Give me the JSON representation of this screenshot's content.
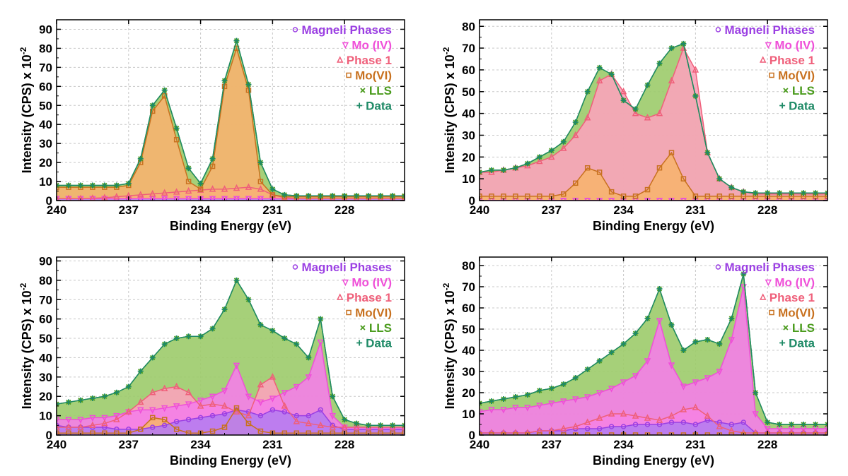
{
  "colors": {
    "magneli": "#9b3fe3",
    "moiv": "#ef4fd8",
    "phase1": "#ef5f7a",
    "movi": "#c8711f",
    "lls": "#4a9b1c",
    "data": "#1e8a66",
    "fill_magneli": "#b77cf0",
    "fill_moiv": "#f57ee8",
    "fill_phase1": "#fba3ba",
    "fill_movi": "#f7b26f",
    "fill_lls": "#9ccb6a",
    "grid": "#c8c8c8"
  },
  "chart_data": [
    {
      "type": "area",
      "title": "",
      "xlabel": "Binding Energy (eV)",
      "ylabel": "Intensity (CPS) x 10",
      "ylabel_exponent": "-2",
      "xlim": [
        240,
        225.5
      ],
      "ylim": [
        0,
        95
      ],
      "xticks": [
        "240",
        "237",
        "234",
        "231",
        "228"
      ],
      "yticks": [
        "0",
        "10",
        "20",
        "30",
        "40",
        "50",
        "60",
        "70",
        "80",
        "90"
      ],
      "legend": [
        "Magneli Phases",
        "Mo (IV)",
        "Phase 1",
        "Mo(VI)",
        "LLS",
        "Data"
      ],
      "x": [
        240,
        239.5,
        239,
        238.5,
        238,
        237.5,
        237,
        236.5,
        236,
        235.5,
        235,
        234.5,
        234,
        233.5,
        233,
        232.5,
        232,
        231.5,
        231,
        230.5,
        230,
        229.5,
        229,
        228.5,
        228,
        227.5,
        227,
        226.5,
        226,
        225.5
      ],
      "series": [
        {
          "name": "Magneli Phases",
          "values": [
            1,
            1,
            1,
            1,
            1,
            1,
            1,
            1,
            1,
            1,
            1,
            1,
            1,
            1,
            1,
            1,
            1,
            1,
            1,
            1,
            1,
            1,
            1,
            1,
            1,
            1,
            1,
            1,
            1,
            1
          ]
        },
        {
          "name": "Mo (IV)",
          "values": [
            1,
            1,
            1,
            1,
            1,
            1,
            1,
            1,
            1,
            1,
            1,
            1,
            1,
            1,
            1,
            1,
            1,
            1,
            1,
            1,
            1,
            1,
            1,
            1,
            1,
            1,
            1,
            1,
            1,
            1
          ]
        },
        {
          "name": "Phase 1",
          "values": [
            1,
            1,
            1,
            1.2,
            1.5,
            2,
            2.5,
            3,
            3.5,
            4,
            4.5,
            5,
            5.5,
            6,
            6,
            6.5,
            7,
            6,
            3,
            1.5,
            1,
            1,
            1,
            1,
            1,
            1,
            1,
            1,
            1,
            1
          ]
        },
        {
          "name": "Mo(VI)",
          "values": [
            7,
            7,
            7,
            7,
            7,
            7,
            8,
            20,
            47,
            55,
            32,
            10,
            6,
            18,
            60,
            80,
            58,
            10,
            3,
            2,
            2,
            2,
            2,
            2,
            2,
            2,
            2,
            2,
            2,
            2
          ]
        },
        {
          "name": "LLS",
          "values": [
            8,
            8,
            8,
            8,
            8,
            8,
            9,
            22,
            50,
            58,
            38,
            17,
            9,
            22,
            63,
            84,
            61,
            20,
            6,
            3,
            2.5,
            2.5,
            2.5,
            2.5,
            2.5,
            2.5,
            2.5,
            2.5,
            2.5,
            2.5
          ]
        },
        {
          "name": "Data",
          "values": [
            8,
            8,
            8,
            8,
            8,
            8,
            9,
            22,
            50,
            58,
            38,
            17,
            9,
            22,
            63,
            84,
            61,
            20,
            6,
            3,
            2.5,
            2.5,
            2.5,
            2.5,
            2.5,
            2.5,
            2.5,
            2.5,
            2.5,
            2.5
          ]
        }
      ]
    },
    {
      "type": "area",
      "title": "",
      "xlabel": "Binding Energy (eV)",
      "ylabel": "Intensity (CPS) x 10",
      "ylabel_exponent": "-2",
      "xlim": [
        240,
        225.5
      ],
      "ylim": [
        0,
        83
      ],
      "xticks": [
        "240",
        "237",
        "234",
        "231",
        "228"
      ],
      "yticks": [
        "0",
        "10",
        "20",
        "30",
        "40",
        "50",
        "60",
        "70",
        "80"
      ],
      "legend": [
        "Magneli Phases",
        "Mo (IV)",
        "Phase 1",
        "Mo(VI)",
        "LLS",
        "Data"
      ],
      "x": [
        240,
        239.5,
        239,
        238.5,
        238,
        237.5,
        237,
        236.5,
        236,
        235.5,
        235,
        234.5,
        234,
        233.5,
        233,
        232.5,
        232,
        231.5,
        231,
        230.5,
        230,
        229.5,
        229,
        228.5,
        228,
        227.5,
        227,
        226.5,
        226,
        225.5
      ],
      "series": [
        {
          "name": "Magneli Phases",
          "values": [
            0,
            0,
            0,
            0,
            0,
            0,
            0,
            0,
            0,
            0,
            0,
            0,
            0,
            0,
            0,
            0,
            0,
            0,
            0,
            0,
            0,
            0,
            0,
            0,
            0,
            0,
            0,
            0,
            0,
            0
          ]
        },
        {
          "name": "Mo (IV)",
          "values": [
            0,
            0,
            0,
            0,
            0,
            0,
            0,
            0,
            0,
            0,
            0,
            0,
            0,
            0,
            0,
            0,
            0,
            0,
            0,
            0,
            0,
            0,
            0,
            0,
            0,
            0,
            0,
            0,
            0,
            0
          ]
        },
        {
          "name": "Phase 1",
          "values": [
            13,
            13,
            14,
            15,
            16,
            18,
            20,
            24,
            30,
            38,
            55,
            58,
            50,
            40,
            38,
            40,
            55,
            70,
            60,
            22,
            10,
            6,
            4,
            3,
            3,
            3,
            3,
            3,
            3,
            3
          ]
        },
        {
          "name": "Mo(VI)",
          "values": [
            2,
            2,
            2,
            2,
            2,
            2,
            2,
            3,
            8,
            15,
            13,
            4,
            2,
            2,
            5,
            15,
            22,
            10,
            2,
            2,
            2,
            2,
            2,
            2,
            2,
            2,
            2,
            2,
            2,
            2
          ]
        },
        {
          "name": "LLS",
          "values": [
            13,
            14,
            14,
            15,
            17,
            20,
            23,
            27,
            36,
            50,
            61,
            58,
            46,
            42,
            53,
            63,
            70,
            72,
            48,
            22,
            10,
            6,
            4,
            3.5,
            3.5,
            3.5,
            3.5,
            3.5,
            3.5,
            3.5
          ]
        },
        {
          "name": "Data",
          "values": [
            13,
            14,
            14,
            15,
            17,
            20,
            23,
            27,
            36,
            50,
            61,
            58,
            46,
            42,
            53,
            63,
            70,
            72,
            48,
            22,
            10,
            6,
            4,
            3.5,
            3.5,
            3.5,
            3.5,
            3.5,
            3.5,
            3.5
          ]
        }
      ]
    },
    {
      "type": "area",
      "title": "",
      "xlabel": "Binding Energy (eV)",
      "ylabel": "Intensity (CPS) x 10",
      "ylabel_exponent": "-2",
      "xlim": [
        240,
        225.5
      ],
      "ylim": [
        0,
        92
      ],
      "xticks": [
        "240",
        "237",
        "234",
        "231",
        "228"
      ],
      "yticks": [
        "0",
        "10",
        "20",
        "30",
        "40",
        "50",
        "60",
        "70",
        "80",
        "90"
      ],
      "legend": [
        "Magneli Phases",
        "Mo (IV)",
        "Phase 1",
        "Mo(VI)",
        "LLS",
        "Data"
      ],
      "x": [
        240,
        239.5,
        239,
        238.5,
        238,
        237.5,
        237,
        236.5,
        236,
        235.5,
        235,
        234.5,
        234,
        233.5,
        233,
        232.5,
        232,
        231.5,
        231,
        230.5,
        230,
        229.5,
        229,
        228.5,
        228,
        227.5,
        227,
        226.5,
        226,
        225.5
      ],
      "series": [
        {
          "name": "Magneli Phases",
          "values": [
            5,
            4,
            4,
            4,
            4,
            3,
            3,
            3,
            4,
            5,
            7,
            8,
            9,
            10,
            11,
            13,
            12,
            10,
            13,
            12,
            10,
            10,
            13,
            5,
            3,
            3,
            3,
            3,
            3,
            3
          ]
        },
        {
          "name": "Mo (IV)",
          "values": [
            8,
            8,
            8,
            9,
            9,
            10,
            12,
            13,
            13,
            14,
            15,
            16,
            18,
            20,
            23,
            36,
            20,
            17,
            19,
            22,
            25,
            30,
            48,
            10,
            4,
            4,
            4,
            4,
            4,
            4
          ]
        },
        {
          "name": "Phase 1",
          "values": [
            4,
            4,
            4,
            5,
            6,
            8,
            12,
            17,
            22,
            24,
            25,
            22,
            15,
            16,
            15,
            12,
            10,
            26,
            30,
            15,
            7,
            6,
            5,
            4,
            4,
            4,
            4,
            4,
            4,
            4
          ]
        },
        {
          "name": "Mo(VI)",
          "values": [
            1,
            1,
            1,
            1,
            1,
            1,
            1,
            3,
            9,
            8,
            3,
            1,
            1,
            2,
            4,
            14,
            6,
            2,
            1,
            1,
            1,
            1,
            1,
            1,
            1,
            1,
            1,
            1,
            1,
            1
          ]
        },
        {
          "name": "LLS",
          "values": [
            16,
            17,
            18,
            19,
            20,
            22,
            25,
            33,
            40,
            47,
            50,
            51,
            51,
            55,
            65,
            80,
            70,
            57,
            54,
            50,
            47,
            40,
            60,
            20,
            8,
            6,
            5,
            5,
            5,
            5
          ]
        },
        {
          "name": "Data",
          "values": [
            16,
            17,
            18,
            19,
            20,
            22,
            25,
            33,
            40,
            47,
            50,
            51,
            51,
            55,
            65,
            80,
            70,
            57,
            54,
            50,
            47,
            40,
            60,
            20,
            8,
            6,
            5,
            5,
            5,
            5
          ]
        }
      ]
    },
    {
      "type": "area",
      "title": "",
      "xlabel": "Binding Energy (eV)",
      "ylabel": "Intensity (CPS) x 10",
      "ylabel_exponent": "-2",
      "xlim": [
        240,
        225.5
      ],
      "ylim": [
        0,
        84
      ],
      "xticks": [
        "240",
        "237",
        "234",
        "231",
        "228"
      ],
      "yticks": [
        "0",
        "10",
        "20",
        "30",
        "40",
        "50",
        "60",
        "70",
        "80"
      ],
      "legend": [
        "Magneli Phases",
        "Mo (IV)",
        "Phase 1",
        "Mo(VI)",
        "LLS",
        "Data"
      ],
      "x": [
        240,
        239.5,
        239,
        238.5,
        238,
        237.5,
        237,
        236.5,
        236,
        235.5,
        235,
        234.5,
        234,
        233.5,
        233,
        232.5,
        232,
        231.5,
        231,
        230.5,
        230,
        229.5,
        229,
        228.5,
        228,
        227.5,
        227,
        226.5,
        226,
        225.5
      ],
      "series": [
        {
          "name": "Magneli Phases",
          "values": [
            1,
            1,
            1,
            1,
            1,
            2,
            2,
            2,
            3,
            3,
            3,
            4,
            4,
            5,
            5,
            5,
            6,
            6,
            5,
            7,
            6,
            5,
            6,
            1,
            1,
            1,
            1,
            1,
            1,
            1
          ]
        },
        {
          "name": "Mo (IV)",
          "values": [
            11,
            12,
            12,
            13,
            13,
            14,
            15,
            16,
            17,
            18,
            20,
            22,
            25,
            28,
            35,
            54,
            33,
            23,
            25,
            27,
            30,
            45,
            70,
            10,
            3,
            3,
            3,
            3,
            3,
            3
          ]
        },
        {
          "name": "Phase 1",
          "values": [
            1,
            1,
            1,
            1,
            1,
            2,
            2,
            3,
            4,
            6,
            8,
            10,
            10,
            9,
            8,
            7,
            9,
            12,
            13,
            9,
            4,
            2,
            1,
            1,
            1,
            1,
            1,
            1,
            1,
            1
          ]
        },
        {
          "name": "Mo(VI)",
          "values": [
            0,
            0,
            0,
            0,
            0,
            0,
            0,
            0,
            0,
            0,
            0,
            0,
            0,
            0,
            0,
            0,
            0,
            0,
            0,
            0,
            0,
            0,
            0,
            0,
            0,
            0,
            0,
            0,
            0,
            0
          ]
        },
        {
          "name": "LLS",
          "values": [
            15,
            16,
            17,
            18,
            19,
            21,
            22,
            24,
            27,
            31,
            35,
            39,
            43,
            48,
            55,
            69,
            52,
            40,
            44,
            45,
            43,
            55,
            76,
            20,
            6,
            5,
            5,
            5,
            5,
            5
          ]
        },
        {
          "name": "Data",
          "values": [
            15,
            16,
            17,
            18,
            19,
            21,
            22,
            24,
            27,
            31,
            35,
            39,
            43,
            48,
            55,
            69,
            52,
            40,
            44,
            45,
            43,
            55,
            76,
            20,
            6,
            5,
            5,
            5,
            5,
            5
          ]
        }
      ]
    }
  ]
}
